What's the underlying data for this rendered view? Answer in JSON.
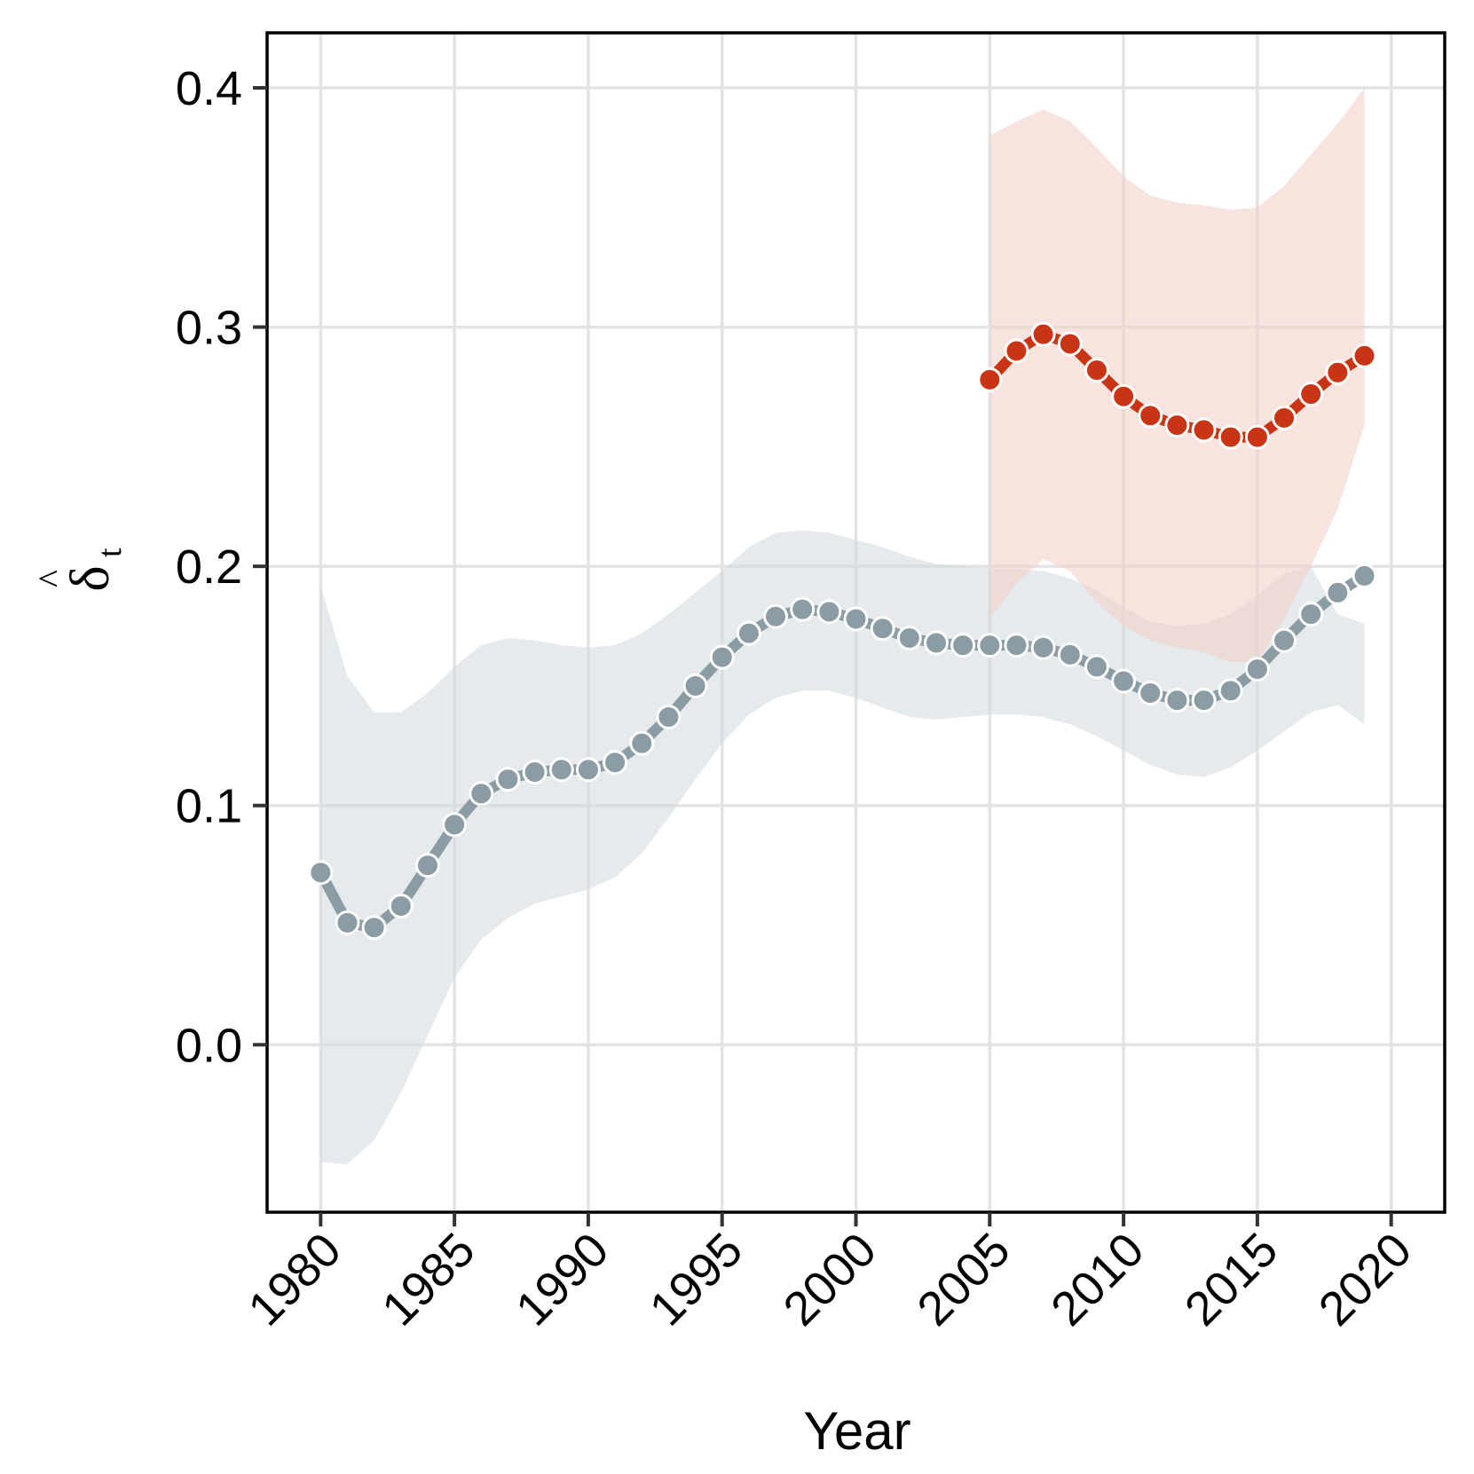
{
  "chart_data": {
    "type": "line",
    "title": "",
    "xlabel": "Year",
    "ylabel": "δ",
    "ylabel_accent": "^",
    "ylabel_subscript": "t",
    "xlim": [
      1978,
      2022
    ],
    "ylim": [
      -0.07,
      0.423
    ],
    "xticks": [
      1980,
      1985,
      1990,
      1995,
      2000,
      2005,
      2010,
      2015,
      2020
    ],
    "xtick_labels": [
      "1980",
      "1985",
      "1990",
      "1995",
      "2000",
      "2005",
      "2010",
      "2015",
      "2020"
    ],
    "yticks": [
      0.0,
      0.1,
      0.2,
      0.3,
      0.4
    ],
    "ytick_labels": [
      "0.0",
      "0.1",
      "0.2",
      "0.3",
      "0.4"
    ],
    "grid": true,
    "legend": "none",
    "series": [
      {
        "color": "#8b9ca4",
        "band_color": "#d3dbe0",
        "x": [
          1980,
          1981,
          1982,
          1983,
          1984,
          1985,
          1986,
          1987,
          1988,
          1989,
          1990,
          1991,
          1992,
          1993,
          1994,
          1995,
          1996,
          1997,
          1998,
          1999,
          2000,
          2001,
          2002,
          2003,
          2004,
          2005,
          2006,
          2007,
          2008,
          2009,
          2010,
          2011,
          2012,
          2013,
          2014,
          2015,
          2016,
          2017,
          2018,
          2019
        ],
        "y": [
          0.072,
          0.051,
          0.049,
          0.058,
          0.075,
          0.092,
          0.105,
          0.111,
          0.114,
          0.115,
          0.115,
          0.118,
          0.126,
          0.137,
          0.15,
          0.162,
          0.172,
          0.179,
          0.182,
          0.181,
          0.178,
          0.174,
          0.17,
          0.168,
          0.167,
          0.167,
          0.167,
          0.166,
          0.163,
          0.158,
          0.152,
          0.147,
          0.144,
          0.144,
          0.148,
          0.157,
          0.169,
          0.18,
          0.189,
          0.196
        ],
        "lower": [
          -0.049,
          -0.05,
          -0.04,
          -0.02,
          0.004,
          0.028,
          0.044,
          0.053,
          0.059,
          0.062,
          0.065,
          0.07,
          0.08,
          0.095,
          0.111,
          0.126,
          0.138,
          0.145,
          0.148,
          0.148,
          0.145,
          0.141,
          0.137,
          0.136,
          0.137,
          0.138,
          0.138,
          0.137,
          0.134,
          0.129,
          0.123,
          0.117,
          0.113,
          0.112,
          0.116,
          0.123,
          0.131,
          0.139,
          0.142,
          0.134
        ],
        "upper": [
          0.192,
          0.154,
          0.139,
          0.139,
          0.147,
          0.158,
          0.167,
          0.17,
          0.169,
          0.167,
          0.166,
          0.167,
          0.172,
          0.18,
          0.189,
          0.198,
          0.208,
          0.214,
          0.215,
          0.214,
          0.211,
          0.208,
          0.204,
          0.201,
          0.2,
          0.199,
          0.199,
          0.198,
          0.195,
          0.19,
          0.183,
          0.177,
          0.175,
          0.176,
          0.18,
          0.188,
          0.197,
          0.2,
          0.18,
          0.176
        ]
      },
      {
        "color": "#c93414",
        "band_color": "#f1d0c8",
        "x": [
          2005,
          2006,
          2007,
          2008,
          2009,
          2010,
          2011,
          2012,
          2013,
          2014,
          2015,
          2016,
          2017,
          2018,
          2019
        ],
        "y": [
          0.278,
          0.29,
          0.297,
          0.293,
          0.282,
          0.271,
          0.263,
          0.259,
          0.257,
          0.254,
          0.254,
          0.262,
          0.272,
          0.281,
          0.288
        ],
        "lower": [
          0.178,
          0.193,
          0.203,
          0.198,
          0.185,
          0.175,
          0.169,
          0.166,
          0.164,
          0.16,
          0.16,
          0.178,
          0.2,
          0.224,
          0.259
        ],
        "upper": [
          0.38,
          0.386,
          0.391,
          0.386,
          0.375,
          0.363,
          0.355,
          0.352,
          0.351,
          0.349,
          0.35,
          0.359,
          0.372,
          0.385,
          0.4
        ]
      }
    ]
  }
}
